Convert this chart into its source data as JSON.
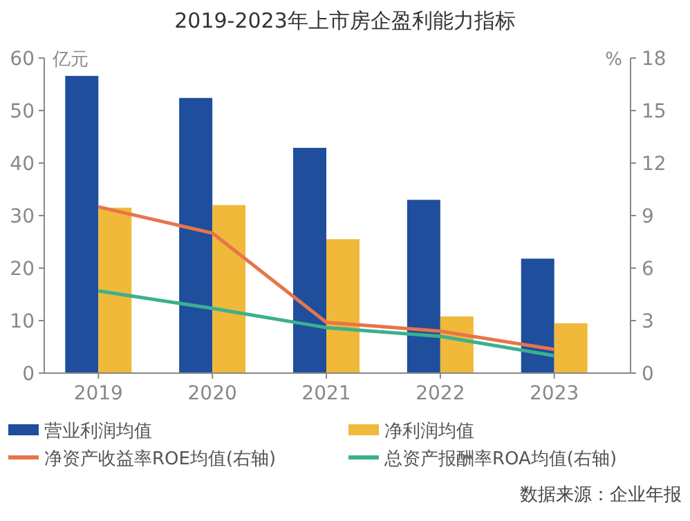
{
  "chart_data": {
    "type": "bar",
    "title": "2019-2023年上市房企盈利能力指标",
    "ylabel": "亿元",
    "y2label": "%",
    "categories": [
      "2019",
      "2020",
      "2021",
      "2022",
      "2023"
    ],
    "series": [
      {
        "name": "营业利润均值",
        "color": "#1f4e9c",
        "values": [
          56.6,
          52.4,
          42.9,
          33,
          21.8
        ]
      },
      {
        "name": "净利润均值",
        "color": "#f0b93a",
        "values": [
          31.5,
          32,
          25.5,
          10.8,
          9.5
        ]
      },
      {
        "name": "净资产收益率ROE均值(右轴)",
        "type": "line",
        "axis": "y2",
        "color": "#e8744a",
        "values": [
          9.5,
          8,
          2.9,
          2.4,
          1.35
        ]
      },
      {
        "name": "总资产报酬率ROA均值(右轴)",
        "type": "line",
        "axis": "y2",
        "color": "#3bb08f",
        "values": [
          4.7,
          3.7,
          2.6,
          2.1,
          1
        ]
      }
    ],
    "ylim": [
      0,
      60
    ],
    "yticks": [
      0,
      10,
      20,
      30,
      40,
      50,
      60
    ],
    "y2lim": [
      0,
      18
    ],
    "y2ticks": [
      0,
      3,
      6,
      9,
      12,
      15,
      18
    ],
    "legend": "bottom",
    "grid": false,
    "marker": "none",
    "line_style": "solid",
    "annotations": [
      "数据来源：企业年报"
    ]
  }
}
